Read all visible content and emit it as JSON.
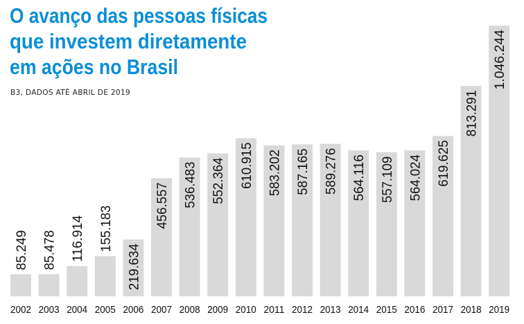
{
  "colors": {
    "title": "#0a8ed6",
    "bar": "#d9d9d9",
    "text": "#111111"
  },
  "chart_data": {
    "type": "bar",
    "title_lines": [
      "O avanço das pessoas físicas",
      "que investem diretamente",
      "em ações no Brasil"
    ],
    "subtitle": "B3, DADOS ATÉ ABRIL DE 2019",
    "xlabel": "",
    "ylabel": "",
    "ylim": [
      0,
      1046244
    ],
    "grid": false,
    "categories": [
      "2002",
      "2003",
      "2004",
      "2005",
      "2006",
      "2007",
      "2008",
      "2009",
      "2010",
      "2011",
      "2012",
      "2013",
      "2014",
      "2015",
      "2016",
      "2017",
      "2018",
      "2019"
    ],
    "values": [
      85249,
      85478,
      116914,
      155183,
      219634,
      456557,
      536483,
      552364,
      610915,
      583202,
      587165,
      589276,
      564116,
      557109,
      564024,
      619625,
      813291,
      1046244
    ],
    "data_labels": [
      "85.249",
      "85.478",
      "116.914",
      "155.183",
      "219.634",
      "456.557",
      "536.483",
      "552.364",
      "610.915",
      "583.202",
      "587.165",
      "589.276",
      "564.116",
      "557.109",
      "564.024",
      "619.625",
      "813.291",
      "1.046.244"
    ]
  }
}
